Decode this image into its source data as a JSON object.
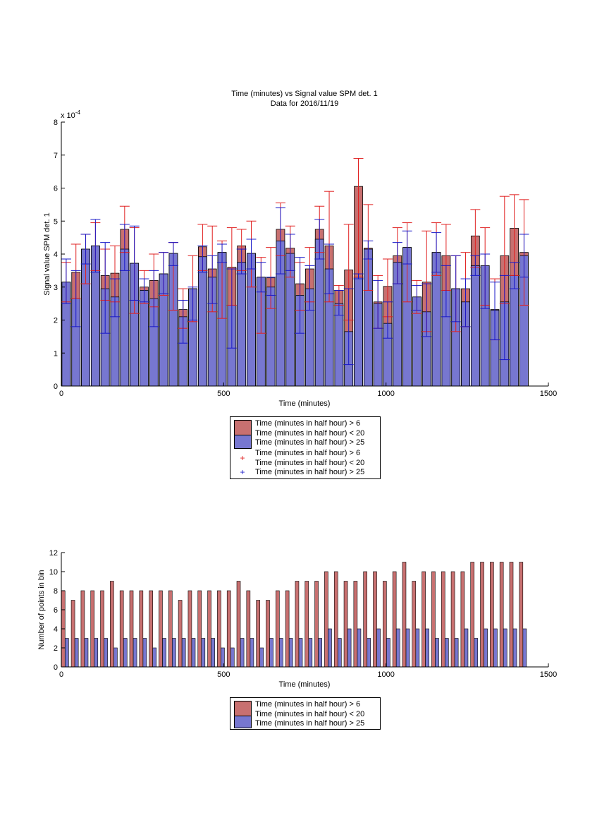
{
  "chart_data": [
    {
      "type": "bar",
      "title": "Time (minutes) vs Signal value SPM det. 1",
      "subtitle": "Data for 2016/11/19",
      "xlabel": "Time (minutes)",
      "ylabel": "Signal value SPM det. 1",
      "exponent_label": "x 10",
      "exponent_power": "-4",
      "xlim": [
        0,
        1500
      ],
      "ylim": [
        0,
        8
      ],
      "xticks": [
        "0",
        "500",
        "1000",
        "1500"
      ],
      "yticks": [
        "0",
        "1",
        "2",
        "3",
        "4",
        "5",
        "6",
        "7",
        "8"
      ],
      "grid": false,
      "legend_placement": "below",
      "colors": {
        "red": "#c87070",
        "blue": "#7777d0",
        "red_err": "#e02020",
        "blue_err": "#1818c8"
      },
      "x": [
        15,
        45,
        75,
        105,
        135,
        165,
        195,
        225,
        255,
        285,
        315,
        345,
        375,
        405,
        435,
        465,
        495,
        525,
        555,
        585,
        615,
        645,
        675,
        705,
        735,
        765,
        795,
        825,
        855,
        885,
        915,
        945,
        975,
        1005,
        1035,
        1065,
        1095,
        1125,
        1155,
        1185,
        1215,
        1245,
        1275,
        1305,
        1335,
        1365,
        1395,
        1425
      ],
      "series": [
        {
          "name": "Time (minutes in half hour) > 6\nTime (minutes in half hour) < 20",
          "values": [
            3.15,
            3.45,
            4.15,
            4.25,
            3.35,
            3.42,
            4.75,
            3.72,
            3.0,
            3.2,
            3.4,
            4.02,
            2.32,
            2.95,
            4.22,
            3.55,
            4.05,
            3.6,
            4.25,
            4.02,
            3.3,
            3.28,
            4.75,
            4.18,
            3.1,
            3.55,
            4.75,
            4.25,
            2.9,
            3.52,
            6.05,
            4.18,
            2.55,
            3.02,
            3.95,
            4.2,
            2.7,
            3.15,
            4.05,
            3.95,
            2.95,
            2.95,
            4.55,
            3.65,
            2.32,
            3.95,
            4.78,
            4.05
          ],
          "err_lo": [
            2.55,
            2.65,
            3.1,
            3.5,
            2.6,
            2.55,
            4.05,
            2.2,
            2.5,
            2.4,
            2.75,
            2.3,
            1.75,
            1.95,
            3.5,
            2.25,
            2.05,
            2.45,
            3.5,
            3.0,
            1.6,
            2.35,
            3.95,
            3.3,
            2.3,
            2.55,
            4.05,
            2.55,
            2.45,
            2.0,
            3.3,
            2.9,
            1.75,
            2.1,
            3.1,
            2.55,
            2.2,
            1.65,
            3.35,
            2.9,
            1.65,
            1.8,
            3.6,
            2.45,
            1.4,
            2.5,
            3.35,
            2.45
          ],
          "err_hi": [
            3.75,
            4.3,
            4.6,
            4.95,
            4.15,
            4.25,
            5.45,
            4.8,
            3.5,
            4.0,
            4.05,
            4.35,
            2.95,
            3.95,
            4.9,
            4.85,
            4.4,
            4.8,
            4.75,
            5.0,
            3.9,
            4.2,
            5.55,
            4.85,
            3.75,
            4.2,
            5.45,
            5.9,
            3.05,
            4.9,
            6.9,
            5.5,
            3.35,
            3.85,
            4.8,
            4.95,
            3.2,
            4.7,
            4.95,
            4.9,
            3.95,
            4.05,
            5.35,
            4.8,
            3.25,
            5.75,
            5.8,
            5.65
          ]
        },
        {
          "name": "Time (minutes in half hour) > 25",
          "values": [
            3.15,
            2.65,
            4.15,
            4.25,
            2.95,
            2.7,
            4.15,
            3.72,
            2.9,
            2.65,
            3.4,
            4.02,
            2.1,
            2.95,
            3.92,
            3.3,
            4.05,
            2.45,
            3.75,
            4.02,
            3.3,
            3.0,
            4.4,
            4.02,
            2.75,
            2.95,
            4.45,
            3.55,
            2.5,
            1.65,
            3.3,
            4.15,
            2.5,
            1.9,
            3.75,
            4.2,
            2.7,
            2.25,
            4.05,
            2.9,
            2.95,
            2.55,
            3.65,
            3.65,
            2.3,
            2.55,
            3.35,
            3.95
          ],
          "err_lo": [
            2.5,
            1.8,
            3.7,
            3.45,
            1.6,
            2.1,
            3.5,
            2.6,
            2.55,
            1.8,
            2.8,
            3.65,
            1.3,
            2.0,
            3.45,
            2.5,
            3.75,
            1.15,
            3.4,
            3.55,
            2.85,
            2.75,
            3.4,
            3.5,
            1.6,
            2.3,
            3.85,
            2.8,
            2.15,
            0.65,
            3.25,
            3.85,
            1.75,
            1.45,
            3.1,
            3.7,
            2.3,
            1.5,
            3.45,
            2.1,
            1.95,
            1.8,
            3.35,
            2.35,
            1.4,
            0.8,
            2.95,
            3.3
          ],
          "err_hi": [
            3.85,
            3.5,
            4.6,
            5.05,
            4.35,
            3.25,
            4.9,
            4.85,
            3.25,
            3.5,
            4.05,
            4.35,
            2.6,
            3.0,
            4.25,
            3.95,
            4.3,
            3.55,
            4.15,
            4.45,
            3.75,
            3.3,
            5.4,
            4.6,
            3.9,
            3.65,
            5.05,
            4.3,
            2.9,
            2.95,
            3.4,
            4.4,
            3.2,
            2.55,
            4.35,
            4.7,
            3.05,
            3.1,
            4.65,
            3.65,
            3.95,
            3.25,
            3.95,
            4.0,
            3.15,
            3.35,
            3.75,
            4.6
          ]
        }
      ],
      "legend": [
        "Time (minutes in half hour) > 6\nTime (minutes in half hour) < 20",
        "Time (minutes in half hour) > 25",
        "Time (minutes in half hour) > 6\nTime (minutes in half hour) < 20",
        "Time (minutes in half hour) > 25"
      ]
    },
    {
      "type": "bar",
      "xlabel": "Time (minutes)",
      "ylabel": "Number of points in bin",
      "xlim": [
        0,
        1500
      ],
      "ylim": [
        0,
        12
      ],
      "xticks": [
        "0",
        "500",
        "1000",
        "1500"
      ],
      "yticks": [
        "0",
        "2",
        "4",
        "6",
        "8",
        "10",
        "12"
      ],
      "grid": false,
      "legend_placement": "below",
      "x_red": [
        6,
        36,
        66,
        96,
        126,
        156,
        186,
        216,
        246,
        276,
        306,
        336,
        366,
        396,
        426,
        456,
        486,
        516,
        546,
        576,
        606,
        636,
        666,
        696,
        726,
        756,
        786,
        816,
        846,
        876,
        906,
        936,
        966,
        996,
        1026,
        1056,
        1086,
        1116,
        1146,
        1176,
        1206,
        1236,
        1266,
        1296,
        1326,
        1356,
        1386,
        1416
      ],
      "x_blue": [
        17,
        47,
        77,
        107,
        137,
        167,
        197,
        227,
        257,
        287,
        317,
        347,
        377,
        407,
        437,
        467,
        497,
        527,
        557,
        587,
        617,
        647,
        677,
        707,
        737,
        767,
        797,
        827,
        857,
        887,
        917,
        947,
        977,
        1007,
        1037,
        1067,
        1097,
        1127,
        1157,
        1187,
        1217,
        1247,
        1277,
        1307,
        1337,
        1367,
        1397,
        1427
      ],
      "series": [
        {
          "name": "Time (minutes in half hour) > 6\nTime (minutes in half hour) < 20",
          "values": [
            8,
            7,
            8,
            8,
            8,
            9,
            8,
            8,
            8,
            8,
            8,
            8,
            7,
            8,
            8,
            8,
            8,
            8,
            9,
            8,
            7,
            7,
            8,
            8,
            9,
            9,
            9,
            10,
            10,
            9,
            9,
            10,
            10,
            9,
            10,
            11,
            9,
            10,
            10,
            10,
            10,
            10,
            11,
            11,
            11,
            11,
            11,
            11
          ]
        },
        {
          "name": "Time (minutes in half hour) > 25",
          "values": [
            3,
            3,
            3,
            3,
            3,
            2,
            3,
            3,
            3,
            2,
            3,
            3,
            3,
            3,
            3,
            3,
            2,
            2,
            3,
            3,
            2,
            3,
            3,
            3,
            3,
            3,
            3,
            4,
            3,
            4,
            4,
            3,
            4,
            3,
            4,
            4,
            4,
            4,
            3,
            3,
            3,
            4,
            3,
            4,
            4,
            4,
            4,
            4
          ]
        }
      ],
      "legend": [
        "Time (minutes in half hour) > 6\nTime (minutes in half hour) < 20",
        "Time (minutes in half hour) > 25"
      ]
    }
  ]
}
